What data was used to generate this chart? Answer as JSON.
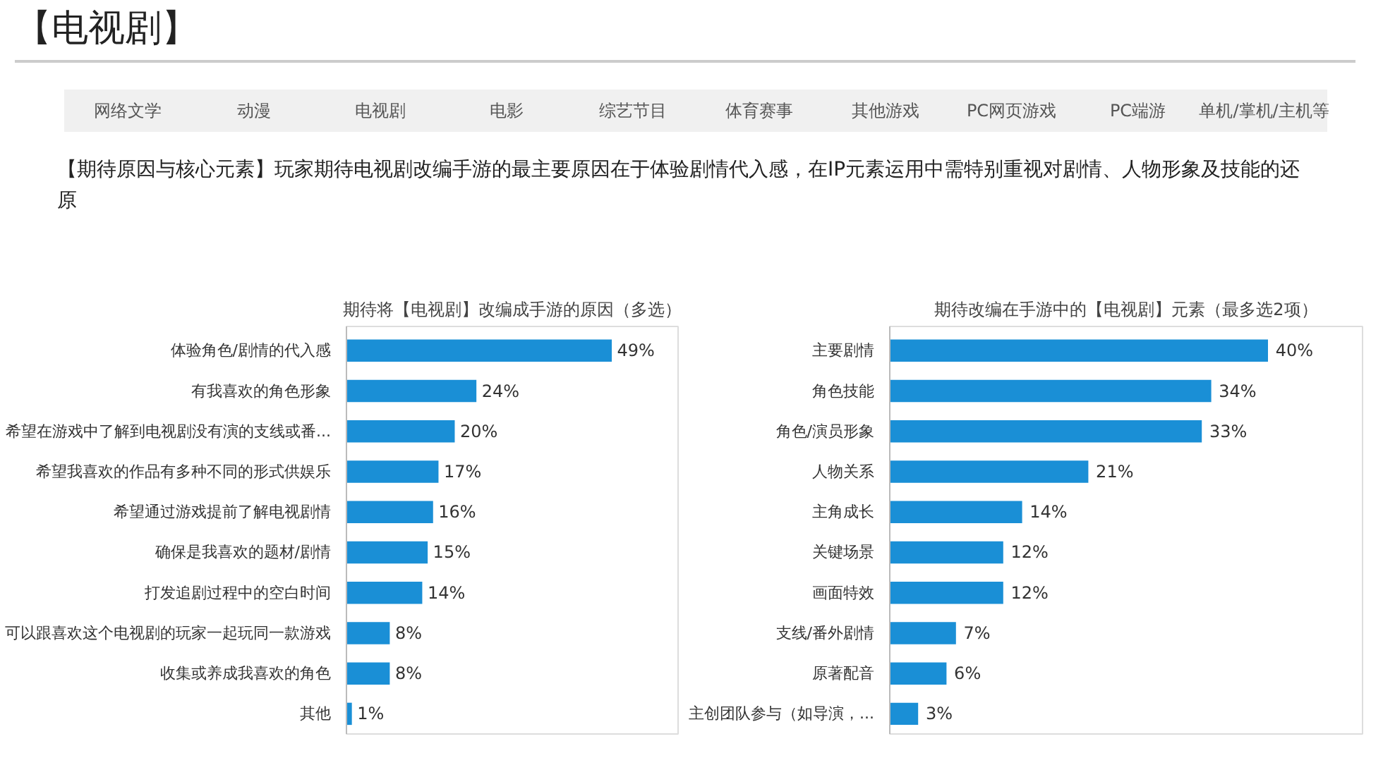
{
  "chart_data": [
    {
      "type": "other",
      "title": "【电视剧】",
      "annotations": [
        "网络文学",
        "动漫",
        "电视剧",
        "电影",
        "综艺节目",
        "体育赛事",
        "其他游戏",
        "PC网页游戏",
        "PC端游",
        "单机/掌机/主机等",
        "【期待原因与核心元素】玩家期待电视剧改编手游的最主要原因在于体验剧情代入感，在IP元素运用中需特别重视对剧情、人物形象及技能的还原"
      ]
    },
    {
      "type": "bar",
      "orientation": "horizontal",
      "title": "期待将【电视剧】改编成手游的原因（多选）",
      "color": "#1a8fd6",
      "categories": [
        "体验角色/剧情的代入感",
        "有我喜欢的角色形象",
        "希望在游戏中了解到电视剧没有演的支线或番...",
        "希望我喜欢的作品有多种不同的形式供娱乐",
        "希望通过游戏提前了解电视剧情",
        "确保是我喜欢的题材/剧情",
        "打发追剧过程中的空白时间",
        "可以跟喜欢这个电视剧的玩家一起玩同一款游戏",
        "收集或养成我喜欢的角色",
        "其他"
      ],
      "values": [
        49,
        24,
        20,
        17,
        16,
        15,
        14,
        8,
        8,
        1
      ],
      "value_labels": [
        "49%",
        "24%",
        "20%",
        "17%",
        "16%",
        "15%",
        "14%",
        "8%",
        "8%",
        "1%"
      ]
    },
    {
      "type": "bar",
      "orientation": "horizontal",
      "title": "期待改编在手游中的【电视剧】元素（最多选2项）",
      "color": "#1a8fd6",
      "categories": [
        "主要剧情",
        "角色技能",
        "角色/演员形象",
        "人物关系",
        "主角成长",
        "关键场景",
        "画面特效",
        "支线/番外剧情",
        "原著配音",
        "主创团队参与（如导演，..."
      ],
      "values": [
        40,
        34,
        33,
        21,
        14,
        12,
        12,
        7,
        6,
        3
      ],
      "value_labels": [
        "40%",
        "34%",
        "33%",
        "21%",
        "14%",
        "12%",
        "12%",
        "7%",
        "6%",
        "3%"
      ]
    }
  ]
}
